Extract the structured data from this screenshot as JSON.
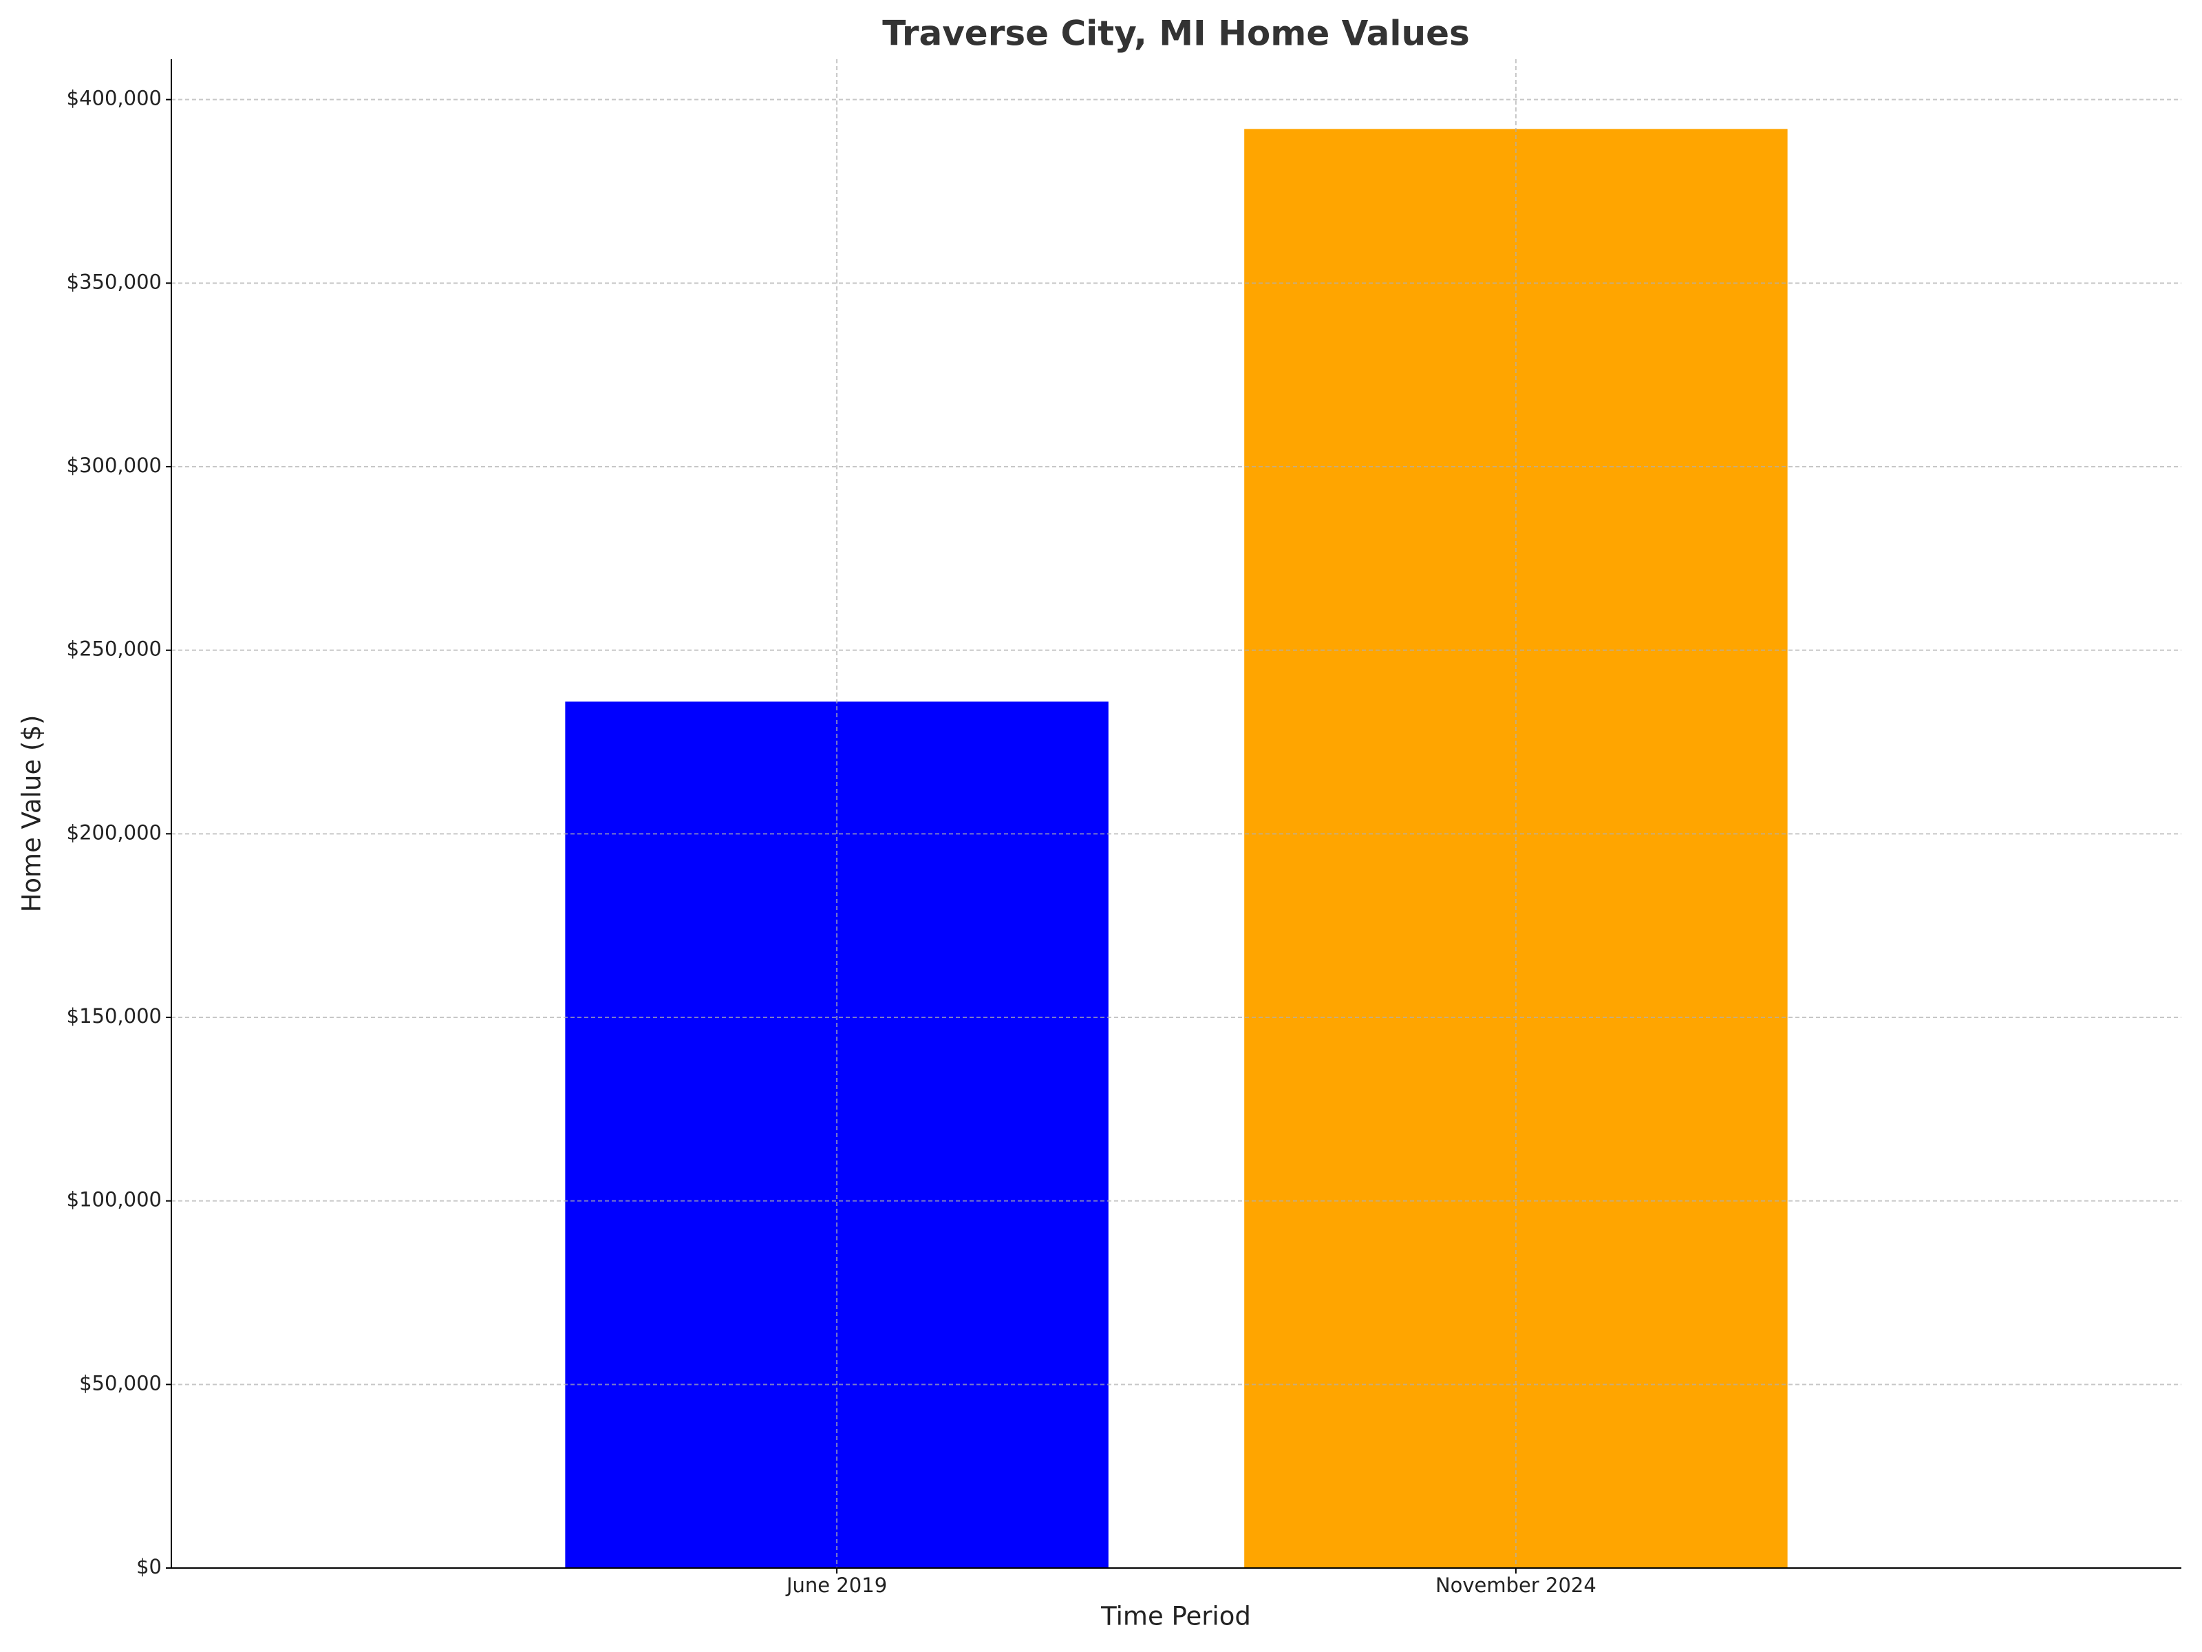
{
  "chart_data": {
    "type": "bar",
    "title": "Traverse City, MI Home Values",
    "x_label": "Time Period",
    "y_label": "Home Value ($)",
    "categories": [
      "June 2019",
      "November 2024"
    ],
    "values": [
      236000,
      392000
    ],
    "colors": [
      "#0000ff",
      "#ffa500"
    ],
    "ylim": [
      0,
      411000
    ],
    "yticks": [
      {
        "value": 0,
        "label": "$0"
      },
      {
        "value": 50000,
        "label": "$50,000"
      },
      {
        "value": 100000,
        "label": "$100,000"
      },
      {
        "value": 150000,
        "label": "$150,000"
      },
      {
        "value": 200000,
        "label": "$200,000"
      },
      {
        "value": 250000,
        "label": "$250,000"
      },
      {
        "value": 300000,
        "label": "$300,000"
      },
      {
        "value": 350000,
        "label": "$350,000"
      },
      {
        "value": 400000,
        "label": "$400,000"
      }
    ],
    "grid": true
  }
}
